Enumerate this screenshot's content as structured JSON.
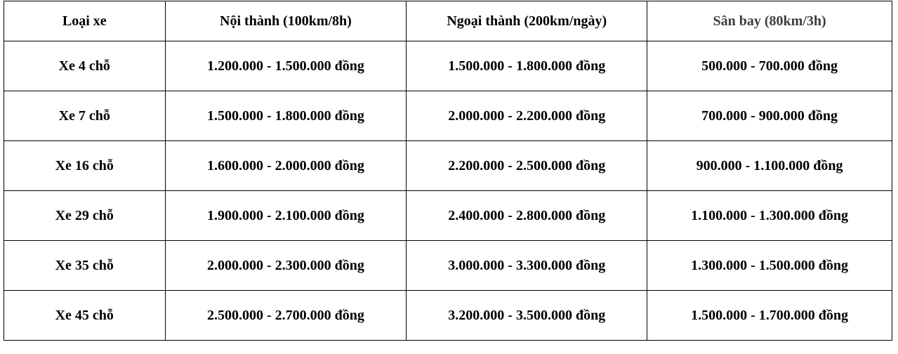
{
  "table": {
    "columns": {
      "vehicle": "Loại xe",
      "inner_city": "Nội thành (100km/8h)",
      "suburban": "Ngoại thành (200km/ngày)",
      "airport": "Sân bay (80km/3h)"
    },
    "rows": [
      [
        "Xe 4 chỗ",
        "1.200.000 - 1.500.000 đồng",
        "1.500.000 - 1.800.000 đồng",
        "500.000 - 700.000 đồng"
      ],
      [
        "Xe 7 chỗ",
        "1.500.000 - 1.800.000 đồng",
        "2.000.000 - 2.200.000 đồng",
        "700.000 - 900.000 đồng"
      ],
      [
        "Xe 16 chỗ",
        "1.600.000 - 2.000.000 đồng",
        "2.200.000 - 2.500.000 đồng",
        "900.000 - 1.100.000 đồng"
      ],
      [
        "Xe 29 chỗ",
        "1.900.000 - 2.100.000 đồng",
        "2.400.000 - 2.800.000 đồng",
        "1.100.000 - 1.300.000 đồng"
      ],
      [
        "Xe 35 chỗ",
        "2.000.000 - 2.300.000 đồng",
        "3.000.000 - 3.300.000 đồng",
        "1.300.000 - 1.500.000 đồng"
      ],
      [
        "Xe 45 chỗ",
        "2.500.000 - 2.700.000 đồng",
        "3.200.000 - 3.500.000 đồng",
        "1.500.000 - 1.700.000 đồng"
      ]
    ],
    "colors": {
      "border": "#000000",
      "text": "#000000",
      "airport_header_text": "#3d3d3d",
      "background": "#ffffff"
    }
  }
}
